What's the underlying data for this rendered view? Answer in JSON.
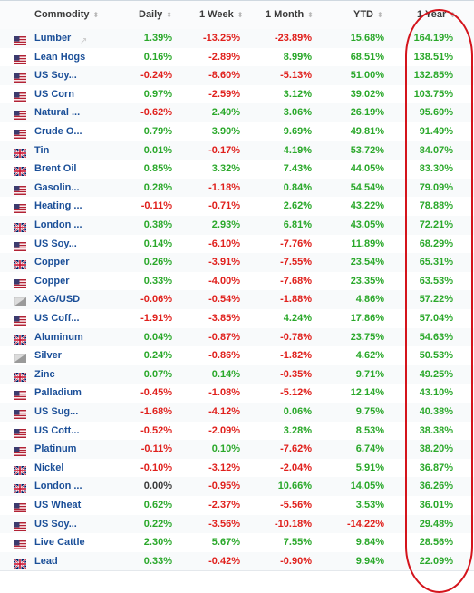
{
  "columns": {
    "commodity": "Commodity",
    "daily": "Daily",
    "week": "1 Week",
    "month": "1 Month",
    "ytd": "YTD",
    "year": "1 Year"
  },
  "rows": [
    {
      "name": "Lumber",
      "flag": "us",
      "daily": "1.39%",
      "week": "-13.25%",
      "month": "-23.89%",
      "ytd": "15.68%",
      "year": "164.19%"
    },
    {
      "name": "Lean Hogs",
      "flag": "us",
      "daily": "0.16%",
      "week": "-2.89%",
      "month": "8.99%",
      "ytd": "68.51%",
      "year": "138.51%"
    },
    {
      "name": "US Soy...",
      "flag": "us",
      "daily": "-0.24%",
      "week": "-8.60%",
      "month": "-5.13%",
      "ytd": "51.00%",
      "year": "132.85%"
    },
    {
      "name": "US Corn",
      "flag": "us",
      "daily": "0.97%",
      "week": "-2.59%",
      "month": "3.12%",
      "ytd": "39.02%",
      "year": "103.75%"
    },
    {
      "name": "Natural ...",
      "flag": "us",
      "daily": "-0.62%",
      "week": "2.40%",
      "month": "3.06%",
      "ytd": "26.19%",
      "year": "95.60%"
    },
    {
      "name": "Crude O...",
      "flag": "us",
      "daily": "0.79%",
      "week": "3.90%",
      "month": "9.69%",
      "ytd": "49.81%",
      "year": "91.49%"
    },
    {
      "name": "Tin",
      "flag": "uk",
      "daily": "0.01%",
      "week": "-0.17%",
      "month": "4.19%",
      "ytd": "53.72%",
      "year": "84.07%"
    },
    {
      "name": "Brent Oil",
      "flag": "uk",
      "daily": "0.85%",
      "week": "3.32%",
      "month": "7.43%",
      "ytd": "44.05%",
      "year": "83.30%"
    },
    {
      "name": "Gasolin...",
      "flag": "us",
      "daily": "0.28%",
      "week": "-1.18%",
      "month": "0.84%",
      "ytd": "54.54%",
      "year": "79.09%"
    },
    {
      "name": "Heating ...",
      "flag": "us",
      "daily": "-0.11%",
      "week": "-0.71%",
      "month": "2.62%",
      "ytd": "43.22%",
      "year": "78.88%"
    },
    {
      "name": "London ...",
      "flag": "uk",
      "daily": "0.38%",
      "week": "2.93%",
      "month": "6.81%",
      "ytd": "43.05%",
      "year": "72.21%"
    },
    {
      "name": "US Soy...",
      "flag": "us",
      "daily": "0.14%",
      "week": "-6.10%",
      "month": "-7.76%",
      "ytd": "11.89%",
      "year": "68.29%"
    },
    {
      "name": "Copper",
      "flag": "uk",
      "daily": "0.26%",
      "week": "-3.91%",
      "month": "-7.55%",
      "ytd": "23.54%",
      "year": "65.31%"
    },
    {
      "name": "Copper",
      "flag": "us",
      "daily": "0.33%",
      "week": "-4.00%",
      "month": "-7.68%",
      "ytd": "23.35%",
      "year": "63.53%"
    },
    {
      "name": "XAG/USD",
      "flag": "silver",
      "daily": "-0.06%",
      "week": "-0.54%",
      "month": "-1.88%",
      "ytd": "4.86%",
      "year": "57.22%"
    },
    {
      "name": "US Coff...",
      "flag": "us",
      "daily": "-1.91%",
      "week": "-3.85%",
      "month": "4.24%",
      "ytd": "17.86%",
      "year": "57.04%"
    },
    {
      "name": "Aluminum",
      "flag": "uk",
      "daily": "0.04%",
      "week": "-0.87%",
      "month": "-0.78%",
      "ytd": "23.75%",
      "year": "54.63%"
    },
    {
      "name": "Silver",
      "flag": "silver",
      "daily": "0.24%",
      "week": "-0.86%",
      "month": "-1.82%",
      "ytd": "4.62%",
      "year": "50.53%"
    },
    {
      "name": "Zinc",
      "flag": "uk",
      "daily": "0.07%",
      "week": "0.14%",
      "month": "-0.35%",
      "ytd": "9.71%",
      "year": "49.25%"
    },
    {
      "name": "Palladium",
      "flag": "us",
      "daily": "-0.45%",
      "week": "-1.08%",
      "month": "-5.12%",
      "ytd": "12.14%",
      "year": "43.10%"
    },
    {
      "name": "US Sug...",
      "flag": "us",
      "daily": "-1.68%",
      "week": "-4.12%",
      "month": "0.06%",
      "ytd": "9.75%",
      "year": "40.38%"
    },
    {
      "name": "US Cott...",
      "flag": "us",
      "daily": "-0.52%",
      "week": "-2.09%",
      "month": "3.28%",
      "ytd": "8.53%",
      "year": "38.38%"
    },
    {
      "name": "Platinum",
      "flag": "us",
      "daily": "-0.11%",
      "week": "0.10%",
      "month": "-7.62%",
      "ytd": "6.74%",
      "year": "38.20%"
    },
    {
      "name": "Nickel",
      "flag": "uk",
      "daily": "-0.10%",
      "week": "-3.12%",
      "month": "-2.04%",
      "ytd": "5.91%",
      "year": "36.87%"
    },
    {
      "name": "London ...",
      "flag": "uk",
      "daily": "0.00%",
      "week": "-0.95%",
      "month": "10.66%",
      "ytd": "14.05%",
      "year": "36.26%"
    },
    {
      "name": "US Wheat",
      "flag": "us",
      "daily": "0.62%",
      "week": "-2.37%",
      "month": "-5.56%",
      "ytd": "3.53%",
      "year": "36.01%"
    },
    {
      "name": "US Soy...",
      "flag": "us",
      "daily": "0.22%",
      "week": "-3.56%",
      "month": "-10.18%",
      "ytd": "-14.22%",
      "year": "29.48%"
    },
    {
      "name": "Live Cattle",
      "flag": "us",
      "daily": "2.30%",
      "week": "5.67%",
      "month": "7.55%",
      "ytd": "9.84%",
      "year": "28.56%"
    },
    {
      "name": "Lead",
      "flag": "uk",
      "daily": "0.33%",
      "week": "-0.42%",
      "month": "-0.90%",
      "ytd": "9.94%",
      "year": "22.09%"
    }
  ],
  "colors": {
    "positive": "#2aa82a",
    "negative": "#e0201c",
    "link": "#1b4f98",
    "annotation": "#d4141c"
  }
}
